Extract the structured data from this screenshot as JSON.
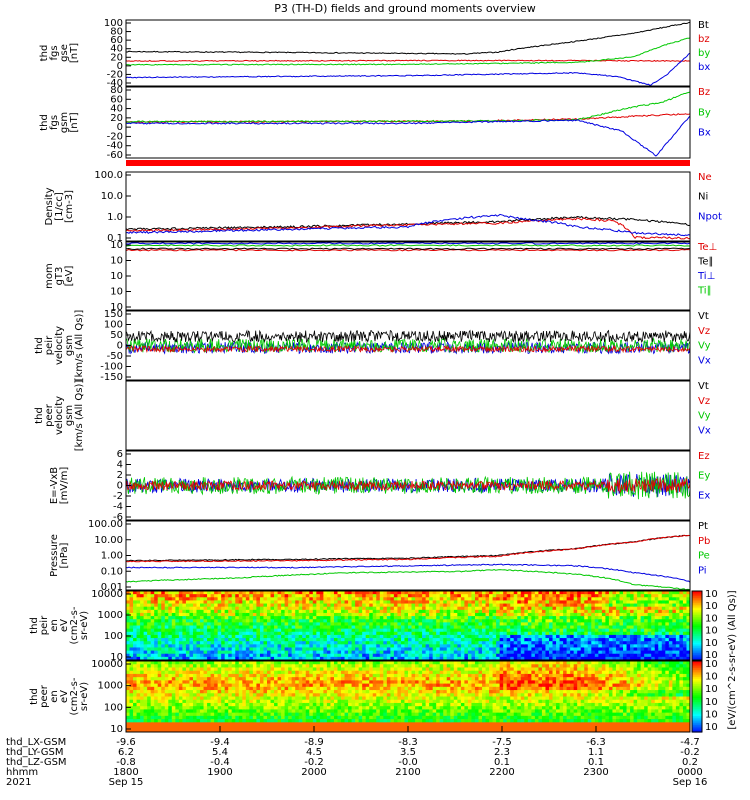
{
  "chart_data": {
    "title": "P3 (TH-D) fields and ground moments overview",
    "x": {
      "tick_labels_time": [
        "1800",
        "1900",
        "2000",
        "2100",
        "2200",
        "2300",
        "0000"
      ],
      "start_date": "Sep 15",
      "end_date": "Sep 16",
      "year": "2021",
      "ephemeris": [
        {
          "name": "thd_LX-GSM",
          "values": [
            "-9.6",
            "-9.4",
            "-8.9",
            "-8.3",
            "-7.5",
            "-6.3",
            "-4.7"
          ]
        },
        {
          "name": "thd_LY-GSM",
          "values": [
            "6.2",
            "5.4",
            "4.5",
            "3.5",
            "2.3",
            "1.1",
            "-0.2"
          ]
        },
        {
          "name": "thd_LZ-GSM",
          "values": [
            "-0.8",
            "-0.4",
            "-0.2",
            "-0.0",
            "0.1",
            "0.1",
            "0.2"
          ]
        },
        {
          "name": "hhmm",
          "values": [
            "1800",
            "1900",
            "2000",
            "2100",
            "2200",
            "2300",
            "0000"
          ]
        }
      ],
      "date_row_label": "2021"
    },
    "panels": [
      {
        "id": "fgs_gse",
        "type": "line",
        "ylabel": [
          "thd",
          "fgs",
          "gse",
          "[nT]"
        ],
        "ylim": [
          -40,
          100
        ],
        "ytick_labels": [
          "100",
          "80",
          "60",
          "40",
          "20",
          "0",
          "-20",
          "-40"
        ],
        "legend": [
          {
            "label": "Bt",
            "color": "#000000"
          },
          {
            "label": "bz",
            "color": "#e00000"
          },
          {
            "label": "by",
            "color": "#00c800"
          },
          {
            "label": "bx",
            "color": "#0000e0"
          }
        ],
        "series": [
          {
            "name": "Bt",
            "color": "#000000",
            "x": [
              0,
              0.3,
              0.5,
              0.6,
              0.66,
              0.7,
              0.8,
              0.9,
              1.0
            ],
            "y": [
              33,
              31,
              29,
              28,
              32,
              40,
              55,
              72,
              95
            ]
          },
          {
            "name": "bz",
            "color": "#e00000",
            "x": [
              0,
              0.6,
              0.8,
              1.0
            ],
            "y": [
              13,
              14,
              14,
              13
            ]
          },
          {
            "name": "by",
            "color": "#00c800",
            "x": [
              0,
              0.5,
              0.66,
              0.8,
              0.9,
              0.95,
              1.0
            ],
            "y": [
              5,
              6,
              8,
              10,
              22,
              45,
              62
            ]
          },
          {
            "name": "bx",
            "color": "#0000e0",
            "x": [
              0,
              0.5,
              0.66,
              0.8,
              0.87,
              0.93,
              0.96,
              1.0
            ],
            "y": [
              -22,
              -18,
              -15,
              -12,
              -20,
              -38,
              -15,
              30
            ]
          }
        ]
      },
      {
        "id": "fgs_gsm",
        "type": "line",
        "ylabel": [
          "thd",
          "fgs",
          "gsm",
          "[nT]"
        ],
        "ylim": [
          -80,
          80
        ],
        "ytick_labels": [
          "80",
          "60",
          "40",
          "20",
          "0",
          "-20",
          "-40",
          "-60"
        ],
        "legend": [
          {
            "label": "Bz",
            "color": "#e00000"
          },
          {
            "label": "By",
            "color": "#00c800"
          },
          {
            "label": "Bx",
            "color": "#0000e0"
          }
        ],
        "series": [
          {
            "name": "Bz",
            "color": "#e00000",
            "x": [
              0,
              0.6,
              0.8,
              0.9,
              1.0
            ],
            "y": [
              1,
              3,
              8,
              14,
              20
            ]
          },
          {
            "name": "By",
            "color": "#00c800",
            "x": [
              0,
              0.5,
              0.66,
              0.8,
              0.9,
              0.95,
              1.0
            ],
            "y": [
              2,
              3,
              4,
              6,
              35,
              45,
              70
            ]
          },
          {
            "name": "Bx",
            "color": "#0000e0",
            "x": [
              0,
              0.5,
              0.66,
              0.8,
              0.88,
              0.94,
              0.97,
              1.0
            ],
            "y": [
              -2,
              -2,
              2,
              5,
              -20,
              -75,
              -30,
              15
            ]
          }
        ]
      },
      {
        "id": "density",
        "type": "line",
        "scale": "log",
        "ylabel": [
          "Density",
          "[1/cc]",
          "[cm-3]"
        ],
        "ylim": [
          0.08,
          200
        ],
        "ytick_labels": [
          "100.0",
          "10.0",
          "1.0",
          "0.1"
        ],
        "legend": [
          {
            "label": "Ne",
            "color": "#e00000"
          },
          {
            "label": "Ni",
            "color": "#000000"
          },
          {
            "label": "Npot",
            "color": "#0000e0"
          }
        ],
        "series": [
          {
            "name": "Ni",
            "color": "#000000",
            "x": [
              0,
              0.3,
              0.5,
              0.66,
              0.8,
              0.9,
              1.0
            ],
            "y": [
              0.3,
              0.4,
              0.55,
              0.7,
              1.2,
              0.9,
              0.5
            ]
          },
          {
            "name": "Ne",
            "color": "#e00000",
            "x": [
              0,
              0.3,
              0.5,
              0.66,
              0.8,
              0.86,
              0.9,
              1.0
            ],
            "y": [
              0.25,
              0.35,
              0.5,
              0.6,
              1.0,
              0.8,
              0.12,
              0.11
            ]
          },
          {
            "name": "Npot",
            "color": "#0000e0",
            "x": [
              0,
              0.3,
              0.5,
              0.66,
              0.7,
              0.8,
              0.9,
              1.0
            ],
            "y": [
              0.2,
              0.3,
              0.4,
              1.5,
              1.0,
              0.4,
              0.2,
              0.15
            ]
          }
        ]
      },
      {
        "id": "temperature",
        "type": "line",
        "scale": "log",
        "ylabel": [
          "mom",
          "gT3",
          "[eV]"
        ],
        "ytick_labels": [
          "10",
          "10",
          "10",
          "10",
          "10"
        ],
        "legend": [
          {
            "label": "Te⊥",
            "color": "#e00000"
          },
          {
            "label": "Te∥",
            "color": "#000000"
          },
          {
            "label": "Ti⊥",
            "color": "#0000e0"
          },
          {
            "label": "Ti∥",
            "color": "#00c800"
          }
        ]
      },
      {
        "id": "peir_velocity",
        "type": "line",
        "ylabel": [
          "thd",
          "peir",
          "velocity",
          "gsm",
          "[km/s (All Qs)]"
        ],
        "ylim": [
          -150,
          150
        ],
        "ytick_labels": [
          "150",
          "100",
          "50",
          "0",
          "-50",
          "-100",
          "-150"
        ],
        "legend": [
          {
            "label": "Vt",
            "color": "#000000"
          },
          {
            "label": "Vz",
            "color": "#e00000"
          },
          {
            "label": "Vy",
            "color": "#00c800"
          },
          {
            "label": "Vx",
            "color": "#0000e0"
          }
        ]
      },
      {
        "id": "peer_velocity",
        "type": "line",
        "ylabel": [
          "thd",
          "peer",
          "velocity",
          "gsm",
          "[km/s (All Qs)]"
        ],
        "legend": [
          {
            "label": "Vt",
            "color": "#000000"
          },
          {
            "label": "Vz",
            "color": "#e00000"
          },
          {
            "label": "Vy",
            "color": "#00c800"
          },
          {
            "label": "Vx",
            "color": "#0000e0"
          }
        ]
      },
      {
        "id": "efield",
        "type": "line",
        "ylabel": [
          "E=-VxB",
          "[mV/m]"
        ],
        "ylim": [
          -6,
          6
        ],
        "ytick_labels": [
          "6",
          "4",
          "2",
          "0",
          "-2",
          "-4",
          "-6"
        ],
        "legend": [
          {
            "label": "Ez",
            "color": "#e00000"
          },
          {
            "label": "Ey",
            "color": "#00c800"
          },
          {
            "label": "Ex",
            "color": "#0000e0"
          }
        ]
      },
      {
        "id": "pressure",
        "type": "line",
        "scale": "log",
        "ylabel": [
          "Pressure",
          "[nPa]"
        ],
        "ylim": [
          0.01,
          100
        ],
        "ytick_labels": [
          "100.00",
          "10.00",
          "1.00",
          "0.10",
          "0.01"
        ],
        "legend": [
          {
            "label": "Pt",
            "color": "#000000"
          },
          {
            "label": "Pb",
            "color": "#e00000"
          },
          {
            "label": "Pe",
            "color": "#00c800"
          },
          {
            "label": "Pi",
            "color": "#0000e0"
          }
        ],
        "series": [
          {
            "name": "Pt",
            "color": "#000000",
            "x": [
              0,
              0.3,
              0.5,
              0.66,
              0.8,
              0.9,
              1.0
            ],
            "y": [
              0.5,
              0.6,
              0.7,
              1.0,
              2.5,
              6,
              15
            ]
          },
          {
            "name": "Pb",
            "color": "#e00000",
            "x": [
              0,
              0.3,
              0.5,
              0.66,
              0.8,
              0.9,
              1.0
            ],
            "y": [
              0.45,
              0.5,
              0.6,
              0.9,
              2.4,
              6,
              15
            ]
          },
          {
            "name": "Pe",
            "color": "#00c800",
            "x": [
              0,
              0.2,
              0.4,
              0.6,
              0.66,
              0.8,
              0.9,
              1.0
            ],
            "y": [
              0.03,
              0.05,
              0.1,
              0.12,
              0.15,
              0.08,
              0.02,
              0.01
            ]
          },
          {
            "name": "Pi",
            "color": "#0000e0",
            "x": [
              0,
              0.3,
              0.5,
              0.66,
              0.8,
              0.9,
              1.0
            ],
            "y": [
              0.2,
              0.2,
              0.25,
              0.3,
              0.25,
              0.1,
              0.03
            ]
          }
        ]
      },
      {
        "id": "peir_en_eflux",
        "type": "heatmap",
        "ylabel": [
          "thd",
          "peir",
          "en",
          "eV",
          "(cm2-s-",
          "sr-eV)"
        ],
        "ytick_labels": [
          "10000",
          "1000",
          "100",
          "10"
        ]
      },
      {
        "id": "peer_en_eflux",
        "type": "heatmap",
        "ylabel": [
          "thd",
          "peer",
          "en",
          "eV",
          "(cm2-s-",
          "sr-eV)"
        ],
        "ytick_labels": [
          "10000",
          "1000",
          "100",
          "10"
        ]
      }
    ],
    "colorbar": {
      "label": "[eV/(cm^2-s-sr-eV) (All Qs)]",
      "tick_labels": [
        "10",
        "10",
        "10",
        "10",
        "10",
        "10"
      ]
    }
  }
}
